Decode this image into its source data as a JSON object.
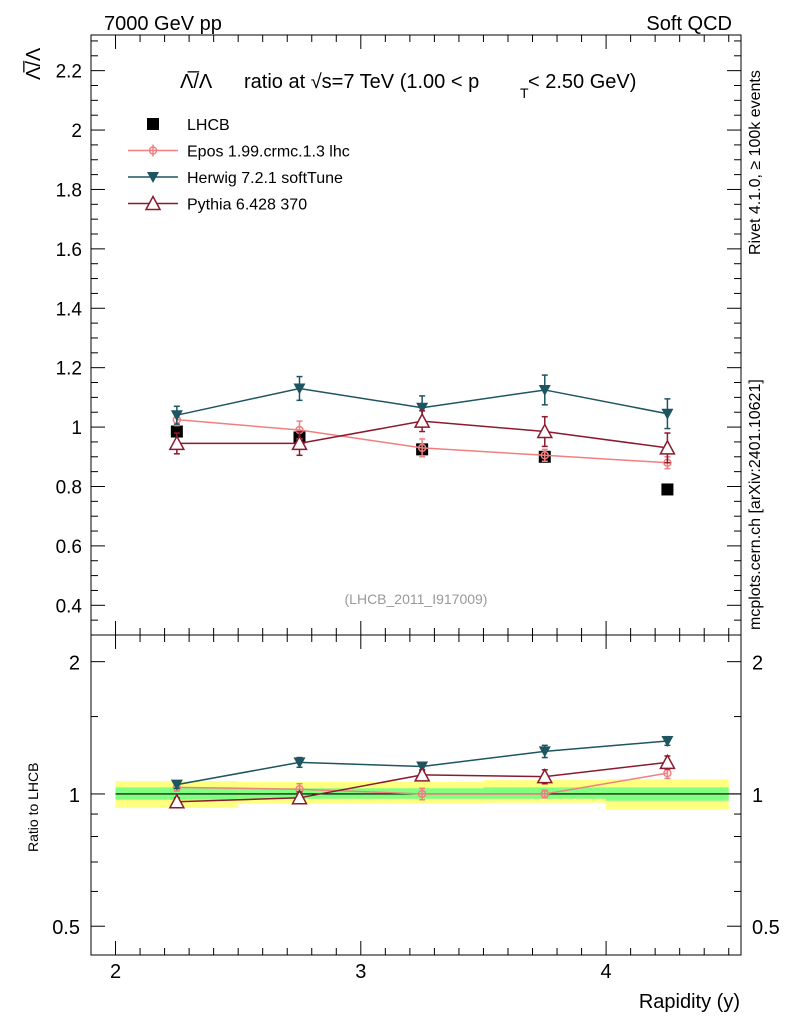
{
  "header": {
    "left": "7000 GeV pp",
    "right": "Soft QCD"
  },
  "side": {
    "rivet": "Rivet 4.1.0, ≥ 100k events",
    "mcplots": "mcplots.cern.ch [arXiv:2401.10621]"
  },
  "colors": {
    "LHCB": "#000000",
    "Epos": "#f08080",
    "Herwig": "#1d5560",
    "Pythia": "#8b1a2e",
    "band_outer": "#ffff80",
    "band_inner": "#80ff80"
  },
  "chart_data": [
    {
      "type": "line",
      "title_main": "ratio at √s=7 TeV (1.00 < p",
      "title_sub": "T",
      "title_end": " < 2.50 GeV)",
      "title_symbol": "Λ̅/Λ",
      "ylabel": "Λ̅/Λ",
      "xlabel": "Rapidity (y)",
      "watermark": "(LHCB_2011_I917009)",
      "xlim": [
        1.9,
        4.55
      ],
      "ylim": [
        0.3,
        2.32
      ],
      "yticks": [
        "0.4",
        "0.6",
        "0.8",
        "1",
        "1.2",
        "1.4",
        "1.6",
        "1.8",
        "2",
        "2.2"
      ],
      "ytick_values": [
        0.4,
        0.6,
        0.8,
        1.0,
        1.2,
        1.4,
        1.6,
        1.8,
        2.0,
        2.2
      ],
      "xticks": [
        "2",
        "3",
        "4"
      ],
      "xtick_values": [
        2,
        3,
        4
      ],
      "x": [
        2.25,
        2.75,
        3.25,
        3.75,
        4.25
      ],
      "series": [
        {
          "name": "LHCB",
          "key": "LHCB",
          "marker": "square",
          "values": [
            0.985,
            0.965,
            0.925,
            0.9,
            0.79
          ],
          "errors": [
            0.01,
            0.01,
            0.01,
            0.01,
            0.01
          ]
        },
        {
          "name": "Epos 1.99.crmc.1.3 lhc",
          "key": "Epos",
          "marker": "circle",
          "values": [
            1.025,
            0.99,
            0.93,
            0.905,
            0.88
          ],
          "errors": [
            0.02,
            0.03,
            0.03,
            0.02,
            0.02
          ]
        },
        {
          "name": "Herwig 7.2.1 softTune",
          "key": "Herwig",
          "marker": "triangle-down",
          "values": [
            1.04,
            1.13,
            1.065,
            1.125,
            1.045
          ],
          "errors": [
            0.03,
            0.04,
            0.04,
            0.05,
            0.05
          ]
        },
        {
          "name": "Pythia 6.428 370",
          "key": "Pythia",
          "marker": "triangle-up",
          "values": [
            0.945,
            0.945,
            1.02,
            0.985,
            0.93
          ],
          "errors": [
            0.035,
            0.04,
            0.035,
            0.05,
            0.05
          ]
        }
      ]
    },
    {
      "type": "line",
      "ylabel": "Ratio to LHCB",
      "scale": "log",
      "ylim": [
        0.43,
        2.3
      ],
      "yticks": [
        "0.5",
        "1",
        "2"
      ],
      "ytick_values": [
        0.5,
        1,
        2
      ],
      "x": [
        2.25,
        2.75,
        3.25,
        3.75,
        4.25
      ],
      "band_outer": [
        [
          2.0,
          2.5,
          0.93,
          1.07
        ],
        [
          2.5,
          3.5,
          0.95,
          1.065
        ],
        [
          3.5,
          4.0,
          0.955,
          1.075
        ],
        [
          4.0,
          4.5,
          0.92,
          1.08
        ]
      ],
      "band_inner": [
        [
          2.0,
          2.5,
          0.97,
          1.035
        ],
        [
          2.5,
          3.5,
          0.975,
          1.03
        ],
        [
          3.5,
          4.0,
          0.975,
          1.035
        ],
        [
          4.0,
          4.5,
          0.965,
          1.035
        ]
      ],
      "series": [
        {
          "name": "Epos 1.99.crmc.1.3 lhc",
          "key": "Epos",
          "marker": "circle",
          "values": [
            1.035,
            1.025,
            1.0,
            1.0,
            1.115
          ],
          "errors": [
            0.02,
            0.03,
            0.03,
            0.02,
            0.03
          ]
        },
        {
          "name": "Herwig 7.2.1 softTune",
          "key": "Herwig",
          "marker": "triangle-down",
          "values": [
            1.05,
            1.18,
            1.155,
            1.25,
            1.32
          ],
          "errors": [
            0.02,
            0.03,
            0.025,
            0.04,
            0.03
          ]
        },
        {
          "name": "Pythia 6.428 370",
          "key": "Pythia",
          "marker": "triangle-up",
          "values": [
            0.96,
            0.98,
            1.105,
            1.095,
            1.18
          ],
          "errors": [
            0.02,
            0.03,
            0.03,
            0.04,
            0.04
          ]
        }
      ]
    }
  ]
}
